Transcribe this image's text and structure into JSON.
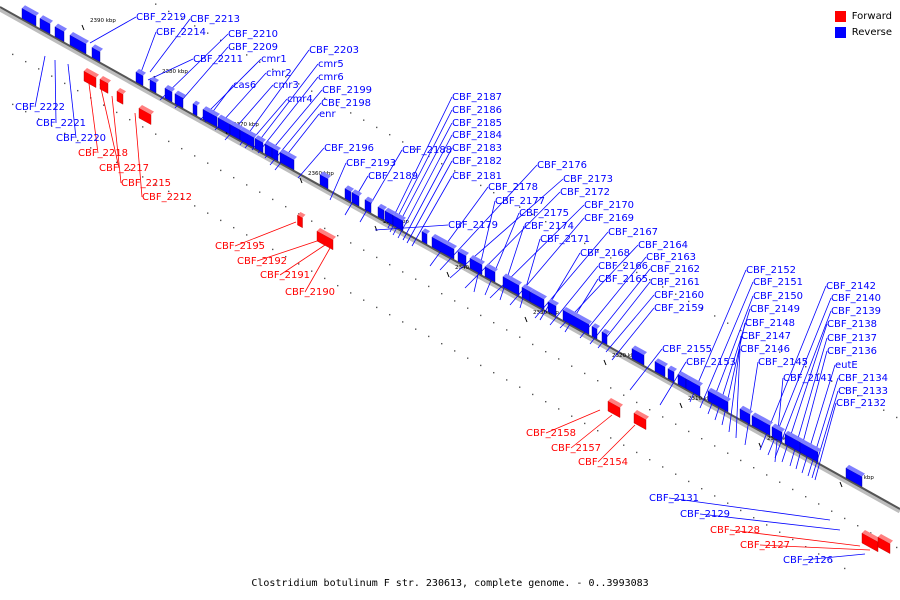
{
  "legend": [
    {
      "label": "Forward",
      "color": "#ff0000"
    },
    {
      "label": "Reverse",
      "color": "#0000ff"
    }
  ],
  "caption": "Clostridium botulinum F str. 230613, complete genome. - 0..3993083",
  "scale_labels": [
    "2390 kbp",
    "2380 kbp",
    "2370 kbp",
    "2360 kbp",
    "2350 kbp",
    "2340 kbp",
    "2330 kbp",
    "2320 kbp",
    "2310 kbp",
    "2300 kbp",
    "2290 kbp"
  ],
  "genes": [
    {
      "name": "CBF_2219",
      "strand": "reverse"
    },
    {
      "name": "CBF_2213",
      "strand": "reverse"
    },
    {
      "name": "CBF_2214",
      "strand": "reverse"
    },
    {
      "name": "CBF_2210",
      "strand": "reverse"
    },
    {
      "name": "CBF_2209",
      "strand": "reverse"
    },
    {
      "name": "CBF_2211",
      "strand": "reverse"
    },
    {
      "name": "cmr1",
      "strand": "reverse"
    },
    {
      "name": "CBF_2203",
      "strand": "reverse"
    },
    {
      "name": "cmr5",
      "strand": "reverse"
    },
    {
      "name": "cmr2",
      "strand": "reverse"
    },
    {
      "name": "cmr6",
      "strand": "reverse"
    },
    {
      "name": "cas6",
      "strand": "reverse"
    },
    {
      "name": "cmr3",
      "strand": "reverse"
    },
    {
      "name": "CBF_2199",
      "strand": "reverse"
    },
    {
      "name": "cmr4",
      "strand": "reverse"
    },
    {
      "name": "CBF_2198",
      "strand": "reverse"
    },
    {
      "name": "enr",
      "strand": "reverse"
    },
    {
      "name": "CBF_2222",
      "strand": "reverse"
    },
    {
      "name": "CBF_2221",
      "strand": "reverse"
    },
    {
      "name": "CBF_2220",
      "strand": "reverse"
    },
    {
      "name": "CBF_2218",
      "strand": "forward"
    },
    {
      "name": "CBF_2217",
      "strand": "forward"
    },
    {
      "name": "CBF_2215",
      "strand": "forward"
    },
    {
      "name": "CBF_2212",
      "strand": "forward"
    },
    {
      "name": "CBF_2187",
      "strand": "reverse"
    },
    {
      "name": "CBF_2186",
      "strand": "reverse"
    },
    {
      "name": "CBF_2185",
      "strand": "reverse"
    },
    {
      "name": "CBF_2184",
      "strand": "reverse"
    },
    {
      "name": "CBF_2196",
      "strand": "reverse"
    },
    {
      "name": "CBF_2188",
      "strand": "reverse"
    },
    {
      "name": "CBF_2183",
      "strand": "reverse"
    },
    {
      "name": "CBF_2193",
      "strand": "reverse"
    },
    {
      "name": "CBF_2182",
      "strand": "reverse"
    },
    {
      "name": "CBF_2189",
      "strand": "reverse"
    },
    {
      "name": "CBF_2181",
      "strand": "reverse"
    },
    {
      "name": "CBF_2176",
      "strand": "reverse"
    },
    {
      "name": "CBF_2173",
      "strand": "reverse"
    },
    {
      "name": "CBF_2178",
      "strand": "reverse"
    },
    {
      "name": "CBF_2172",
      "strand": "reverse"
    },
    {
      "name": "CBF_2177",
      "strand": "reverse"
    },
    {
      "name": "CBF_2170",
      "strand": "reverse"
    },
    {
      "name": "CBF_2175",
      "strand": "reverse"
    },
    {
      "name": "CBF_2169",
      "strand": "reverse"
    },
    {
      "name": "CBF_2179",
      "strand": "reverse"
    },
    {
      "name": "CBF_2174",
      "strand": "reverse"
    },
    {
      "name": "CBF_2167",
      "strand": "reverse"
    },
    {
      "name": "CBF_2171",
      "strand": "reverse"
    },
    {
      "name": "CBF_2164",
      "strand": "reverse"
    },
    {
      "name": "CBF_2168",
      "strand": "reverse"
    },
    {
      "name": "CBF_2163",
      "strand": "reverse"
    },
    {
      "name": "CBF_2166",
      "strand": "reverse"
    },
    {
      "name": "CBF_2162",
      "strand": "reverse"
    },
    {
      "name": "CBF_2165",
      "strand": "reverse"
    },
    {
      "name": "CBF_2161",
      "strand": "reverse"
    },
    {
      "name": "CBF_2160",
      "strand": "reverse"
    },
    {
      "name": "CBF_2159",
      "strand": "reverse"
    },
    {
      "name": "CBF_2195",
      "strand": "forward"
    },
    {
      "name": "CBF_2192",
      "strand": "forward"
    },
    {
      "name": "CBF_2191",
      "strand": "forward"
    },
    {
      "name": "CBF_2190",
      "strand": "forward"
    },
    {
      "name": "CBF_2152",
      "strand": "reverse"
    },
    {
      "name": "CBF_2151",
      "strand": "reverse"
    },
    {
      "name": "CBF_2150",
      "strand": "reverse"
    },
    {
      "name": "CBF_2149",
      "strand": "reverse"
    },
    {
      "name": "CBF_2148",
      "strand": "reverse"
    },
    {
      "name": "CBF_2147",
      "strand": "reverse"
    },
    {
      "name": "CBF_2146",
      "strand": "reverse"
    },
    {
      "name": "CBF_2155",
      "strand": "reverse"
    },
    {
      "name": "CBF_2153",
      "strand": "reverse"
    },
    {
      "name": "CBF_2145",
      "strand": "reverse"
    },
    {
      "name": "CBF_2141",
      "strand": "reverse"
    },
    {
      "name": "CBF_2142",
      "strand": "reverse"
    },
    {
      "name": "CBF_2140",
      "strand": "reverse"
    },
    {
      "name": "CBF_2139",
      "strand": "reverse"
    },
    {
      "name": "CBF_2138",
      "strand": "reverse"
    },
    {
      "name": "CBF_2137",
      "strand": "reverse"
    },
    {
      "name": "CBF_2136",
      "strand": "reverse"
    },
    {
      "name": "eutE",
      "strand": "reverse"
    },
    {
      "name": "CBF_2134",
      "strand": "reverse"
    },
    {
      "name": "CBF_2133",
      "strand": "reverse"
    },
    {
      "name": "CBF_2132",
      "strand": "reverse"
    },
    {
      "name": "CBF_2158",
      "strand": "forward"
    },
    {
      "name": "CBF_2157",
      "strand": "forward"
    },
    {
      "name": "CBF_2154",
      "strand": "forward"
    },
    {
      "name": "CBF_2131",
      "strand": "reverse"
    },
    {
      "name": "CBF_2129",
      "strand": "reverse"
    },
    {
      "name": "CBF_2128",
      "strand": "forward"
    },
    {
      "name": "CBF_2127",
      "strand": "forward"
    },
    {
      "name": "CBF_2126",
      "strand": "reverse"
    }
  ]
}
